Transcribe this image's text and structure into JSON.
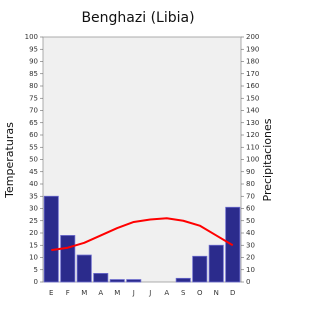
{
  "chart_data": {
    "type": "climograph",
    "title": "Benghazi (Libia)",
    "ylabel": "Temperaturas",
    "y2label": "Precipitaciones",
    "categories": [
      "E",
      "F",
      "M",
      "A",
      "M",
      "J",
      "J",
      "A",
      "S",
      "O",
      "N",
      "D"
    ],
    "series": [
      {
        "type": "bar",
        "axis": "y2",
        "color": "#2b2b8c",
        "values": [
          70,
          38,
          22,
          7,
          2,
          2,
          0,
          0,
          3,
          21,
          30,
          61
        ]
      },
      {
        "type": "line",
        "axis": "y",
        "color": "#ff0000",
        "values": [
          13,
          14,
          16,
          19,
          22,
          24.5,
          25.5,
          26,
          25,
          23,
          19,
          15
        ]
      }
    ],
    "ylim": [
      0,
      100
    ],
    "yticks": [
      0,
      5,
      10,
      15,
      20,
      25,
      30,
      35,
      40,
      45,
      50,
      55,
      60,
      65,
      70,
      75,
      80,
      85,
      90,
      95,
      100
    ],
    "y2lim": [
      0,
      200
    ],
    "y2ticks": [
      0,
      10,
      20,
      30,
      40,
      50,
      60,
      70,
      80,
      90,
      100,
      110,
      120,
      130,
      140,
      150,
      160,
      170,
      180,
      190,
      200
    ]
  }
}
